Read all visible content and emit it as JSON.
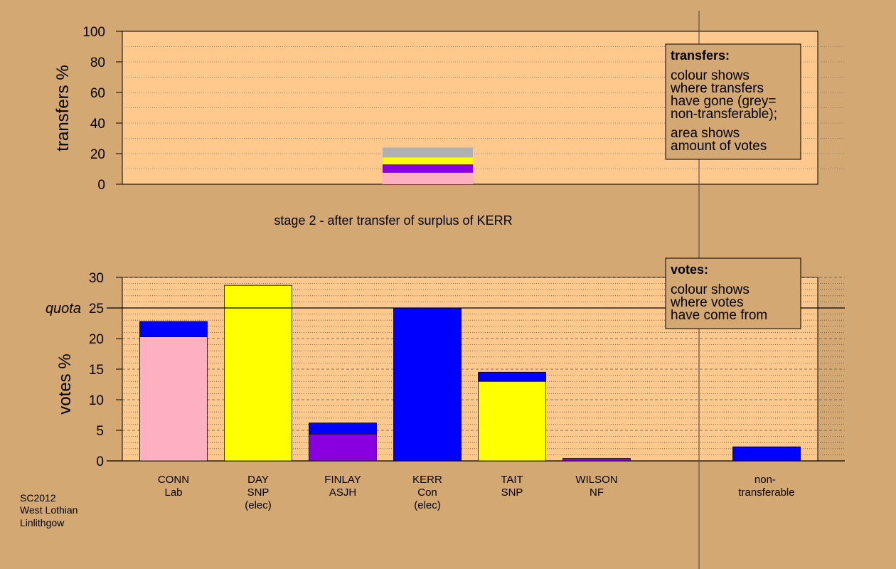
{
  "top_chart": {
    "ylabel": "transfers %",
    "ylim": [
      0,
      100
    ],
    "ticks": [
      "0",
      "20",
      "40",
      "60",
      "80",
      "100"
    ],
    "legend": {
      "title": "transfers:",
      "lines": [
        "colour shows",
        "where transfers",
        "have gone (grey=",
        "non-transferable);",
        "area shows",
        "amount of votes"
      ]
    }
  },
  "stage_caption": "stage 2 - after transfer of surplus of KERR",
  "bottom_chart": {
    "ylabel": "votes %",
    "quota_label": "quota",
    "quota_value": 25,
    "ylim": [
      0,
      30
    ],
    "ticks": [
      "0",
      "5",
      "10",
      "15",
      "20",
      "25",
      "30"
    ],
    "legend": {
      "title": "votes:",
      "lines": [
        "colour shows",
        "where votes",
        "have come from"
      ]
    }
  },
  "colors": {
    "background": "#d4a872",
    "plot_bg": "#ffc98e",
    "Lab": "#ffb0c0",
    "SNP": "#ffff00",
    "ASJH": "#8800e0",
    "Con": "#0000ff",
    "NF": "#8800e0",
    "nontransferable": "#b0b0b0"
  },
  "candidates": [
    {
      "name": "CONN",
      "party": "Lab",
      "note": ""
    },
    {
      "name": "DAY",
      "party": "SNP",
      "note": "(elec)"
    },
    {
      "name": "FINLAY",
      "party": "ASJH",
      "note": ""
    },
    {
      "name": "KERR",
      "party": "Con",
      "note": "(elec)"
    },
    {
      "name": "TAIT",
      "party": "SNP",
      "note": ""
    },
    {
      "name": "WILSON",
      "party": "NF",
      "note": ""
    }
  ],
  "nontransferable_label": [
    "non-",
    "transferable"
  ],
  "footer": [
    "SC2012",
    "West Lothian",
    "Linlithgow"
  ],
  "chart_data": [
    {
      "type": "bar",
      "title": "",
      "ylabel": "transfers %",
      "ylim": [
        0,
        100
      ],
      "categories": [
        "KERR"
      ],
      "stacked_segments": [
        {
          "color": "Lab",
          "value": 7.5
        },
        {
          "color": "ASJH",
          "value": 5.5
        },
        {
          "color": "SNP",
          "value": 4.5
        },
        {
          "color": "nontransferable",
          "value": 6.5
        }
      ]
    },
    {
      "type": "bar",
      "title": "stage 2 - after transfer of surplus of KERR",
      "ylabel": "votes %",
      "ylim": [
        0,
        30
      ],
      "quota": 25,
      "categories": [
        "CONN",
        "DAY",
        "FINLAY",
        "KERR",
        "TAIT",
        "WILSON",
        "non-transferable"
      ],
      "stacks": [
        [
          {
            "color": "Lab",
            "value": 20.3
          },
          {
            "color": "Con",
            "value": 2.5
          }
        ],
        [
          {
            "color": "SNP",
            "value": 28.7
          }
        ],
        [
          {
            "color": "ASJH",
            "value": 4.4
          },
          {
            "color": "Con",
            "value": 1.8
          }
        ],
        [
          {
            "color": "Con",
            "value": 25.0
          }
        ],
        [
          {
            "color": "SNP",
            "value": 13.0
          },
          {
            "color": "Con",
            "value": 1.5
          }
        ],
        [
          {
            "color": "NF",
            "value": 0.4
          }
        ],
        [
          {
            "color": "Con",
            "value": 2.3
          }
        ]
      ]
    }
  ]
}
